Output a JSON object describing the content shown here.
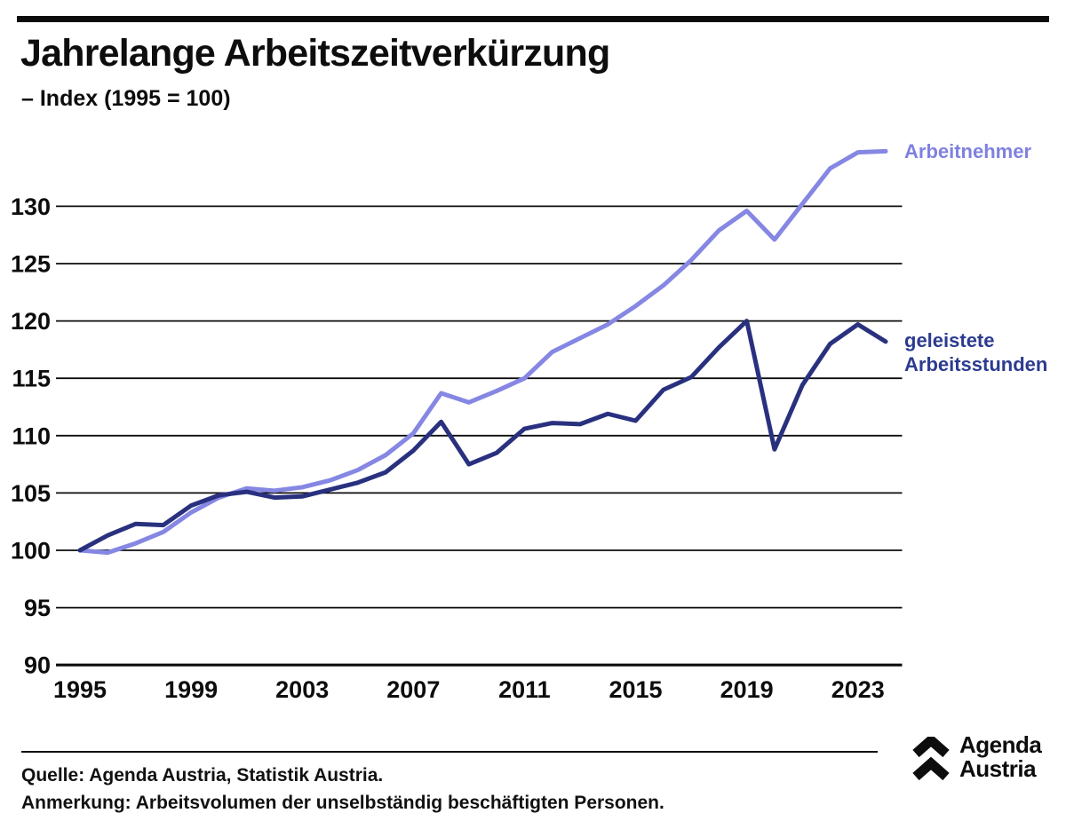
{
  "header": {
    "title": "Jahrelange Arbeitszeitverkürzung",
    "subtitle": "– Index (1995 = 100)"
  },
  "legend": {
    "arbeitnehmer": "Arbeitnehmer",
    "arbeitsstunden_line1": "geleistete",
    "arbeitsstunden_line2": "Arbeitsstunden"
  },
  "chart_data": {
    "type": "line",
    "title": "Jahrelange Arbeitszeitverkürzung",
    "subtitle": "– Index (1995 = 100)",
    "x": [
      1995,
      1996,
      1997,
      1998,
      1999,
      2000,
      2001,
      2002,
      2003,
      2004,
      2005,
      2006,
      2007,
      2008,
      2009,
      2010,
      2011,
      2012,
      2013,
      2014,
      2015,
      2016,
      2017,
      2018,
      2019,
      2020,
      2021,
      2022,
      2023,
      2024
    ],
    "xticks": [
      1995,
      1999,
      2003,
      2007,
      2011,
      2015,
      2019,
      2023
    ],
    "yticks": [
      90,
      95,
      100,
      105,
      110,
      115,
      120,
      125,
      130
    ],
    "ylim": [
      90,
      135.5
    ],
    "grid": "horizontal",
    "legend_position": "right-of-line-ends",
    "series": [
      {
        "name": "Arbeitnehmer",
        "color": "#8587e3",
        "label_color": "#7f81e0",
        "values": [
          100,
          99.8,
          100.6,
          101.6,
          103.3,
          104.6,
          105.4,
          105.2,
          105.5,
          106.1,
          107.0,
          108.3,
          110.2,
          113.7,
          112.9,
          113.9,
          115.0,
          117.3,
          118.5,
          119.7,
          121.3,
          123.1,
          125.3,
          127.9,
          129.6,
          127.1,
          130.2,
          133.3,
          134.7,
          134.8
        ]
      },
      {
        "name": "geleistete Arbeitsstunden",
        "color": "#29317f",
        "label_color": "#2c3b90",
        "values": [
          100,
          101.3,
          102.3,
          102.2,
          103.9,
          104.8,
          105.1,
          104.6,
          104.7,
          105.3,
          105.9,
          106.8,
          108.7,
          111.2,
          107.5,
          108.5,
          110.6,
          111.1,
          111.0,
          111.9,
          111.3,
          114.0,
          115.1,
          117.7,
          120.0,
          108.8,
          114.4,
          118.0,
          119.7,
          118.2
        ]
      }
    ]
  },
  "footer": {
    "source": "Quelle: Agenda Austria, Statistik Austria.",
    "note": "Anmerkung: Arbeitsvolumen der unselbständig beschäftigten Personen.",
    "logo_line1": "Agenda",
    "logo_line2": "Austria"
  }
}
